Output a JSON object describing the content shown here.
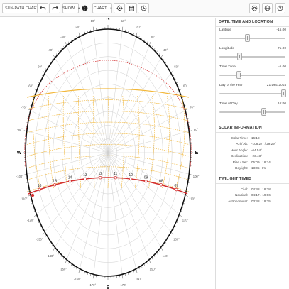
{
  "toolbar": {
    "title": "SUN-PATH CHART:",
    "show_label": "SHOW",
    "chart_label": "CHART"
  },
  "compass": {
    "north": "N",
    "south": "S",
    "east": "E",
    "west": "W",
    "azimuth_labels": [
      "-10°",
      "-20°",
      "-30°",
      "-40°",
      "-50°",
      "-60°",
      "-70°",
      "-80°",
      "-100°",
      "-110°",
      "-120°",
      "-130°",
      "-140°",
      "-150°",
      "-160°",
      "-170°",
      "10°",
      "20°",
      "30°",
      "40°",
      "50°",
      "60°",
      "70°",
      "80°",
      "100°",
      "110°",
      "120°",
      "130°",
      "140°",
      "150°",
      "160°",
      "170°"
    ]
  },
  "hour_labels": [
    "16",
    "15",
    "14",
    "13",
    "12",
    "11",
    "10",
    "09",
    "08",
    "07"
  ],
  "colors": {
    "sun_path_today": "#d32f2f",
    "analemma": "#f2b73a",
    "grid": "#cfcfcf",
    "horizon_ring": "#111111"
  },
  "sidebar": {
    "location_section": {
      "title": "DATE, TIME AND LOCATION",
      "controls": [
        {
          "label": "Latitude",
          "value": "-15.00",
          "fraction": 0.42
        },
        {
          "label": "Longitude",
          "value": "-71.00",
          "fraction": 0.3
        },
        {
          "label": "Time Zone",
          "value": "-5.00",
          "fraction": 0.29
        },
        {
          "label": "Day of the Year",
          "value": "21 Dec 2014",
          "fraction": 0.97
        },
        {
          "label": "Time of Day",
          "value": "16:00",
          "fraction": 0.67
        }
      ]
    },
    "solar_section": {
      "title": "SOLAR INFORMATION",
      "rows": [
        {
          "key": "Solar Time:",
          "value": "16:18"
        },
        {
          "key": "Azi / Alt:",
          "value": "-108.27° / 29.29°"
        },
        {
          "key": "Hour Angle:",
          "value": "-64.54°"
        },
        {
          "key": "Declination:",
          "value": "-23.43°"
        },
        {
          "key": "Rise / Set:",
          "value": "05:09 / 18:14"
        },
        {
          "key": "Daylight:",
          "value": "13:05 Hrs"
        }
      ]
    },
    "twilight_section": {
      "title": "TWILIGHT TIMES",
      "rows": [
        {
          "key": "Civil:",
          "value": "04:48 / 18:38"
        },
        {
          "key": "Nautical:",
          "value": "04:17 / 19:06"
        },
        {
          "key": "Astronomical:",
          "value": "03:48 / 19:35"
        }
      ]
    }
  }
}
